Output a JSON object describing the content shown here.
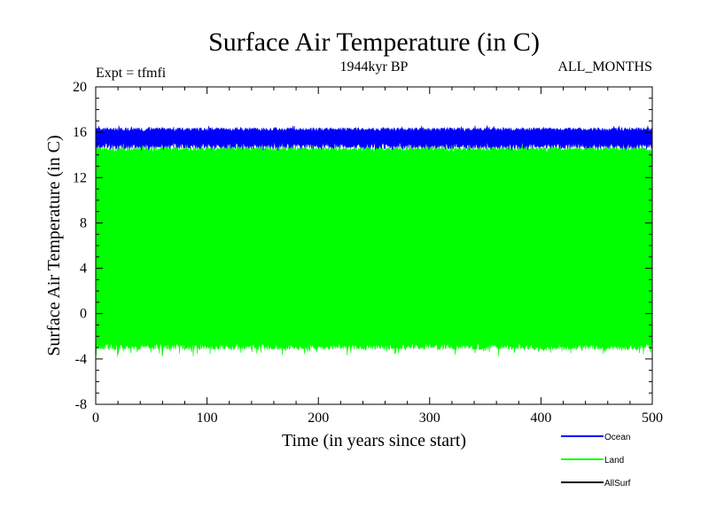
{
  "chart_data": {
    "type": "area",
    "title": "Surface Air Temperature (in C)",
    "subtitle": "1944kyr BP",
    "expt_label": "Expt = tfmfi",
    "months_label": "ALL_MONTHS",
    "xlabel": "Time (in years since start)",
    "ylabel": "Surface Air Temperature (in C)",
    "xlim": [
      0,
      500
    ],
    "ylim": [
      -8,
      20
    ],
    "x_ticks": [
      0,
      100,
      200,
      300,
      400,
      500
    ],
    "x_tick_labels": [
      "0",
      "100",
      "200",
      "300",
      "400",
      "500"
    ],
    "y_ticks": [
      -8,
      -4,
      0,
      4,
      8,
      12,
      16,
      20
    ],
    "y_tick_labels": [
      "-8",
      "-4",
      "0",
      "4",
      "8",
      "12",
      "16",
      "20"
    ],
    "grid": false,
    "legend_position": "bottom-right",
    "series": [
      {
        "name": "Ocean",
        "color": "#0000ff",
        "annual_min_approx": 14.5,
        "annual_max_approx": 16.4
      },
      {
        "name": "Land",
        "color": "#00ff00",
        "annual_min_approx": -3.2,
        "annual_max_approx": 14.7
      },
      {
        "name": "AllSurf",
        "color": "#000000",
        "annual_min_approx": null,
        "annual_max_approx": null
      }
    ]
  }
}
